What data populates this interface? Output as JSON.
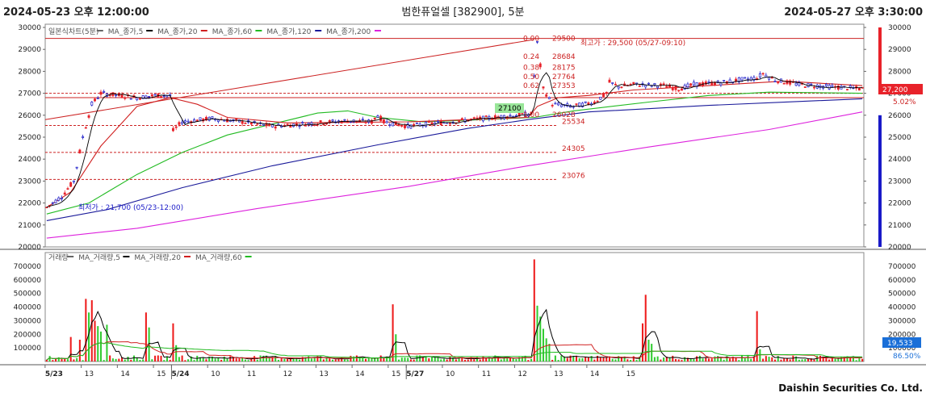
{
  "header": {
    "start": "2024-05-23 오후 12:00:00",
    "title": "범한퓨얼셀 [382900], 5분",
    "end": "2024-05-27 오후 3:30:00"
  },
  "footer": {
    "brand": "Daishin Securities Co. Ltd."
  },
  "colors": {
    "up": "#e8222a",
    "down": "#1a1ac8",
    "ma5": "#000000",
    "ma20": "#d02020",
    "ma60": "#22bb22",
    "ma120": "#1a1a9a",
    "ma200": "#dd22dd",
    "vol_up": "#ee1c1c",
    "vol_down": "#33cc33"
  },
  "price_panel": {
    "legend": [
      {
        "label": "일본식차트(5분)",
        "color": "#666666"
      },
      {
        "label": "MA_종가,5",
        "color": "#000000"
      },
      {
        "label": "MA_종가,20",
        "color": "#d02020"
      },
      {
        "label": "MA_종가,60",
        "color": "#22bb22"
      },
      {
        "label": "MA_종가,120",
        "color": "#1a1a9a"
      },
      {
        "label": "MA_종가,200",
        "color": "#dd22dd"
      }
    ],
    "current_price": "27,200",
    "change_pct": "5.02%",
    "high_label": "최고가 : 29,500 (05/27-09:10)",
    "low_label": "최저가 : 21,700 (05/23-12:00)",
    "box_label": "27100",
    "fib_ratios": [
      "0.00",
      "0.24",
      "0.38",
      "0.50",
      "0.62",
      "1.00"
    ],
    "fib_values": [
      "29500",
      "28684",
      "28175",
      "27764",
      "27353",
      "26028"
    ]
  },
  "volume_panel": {
    "legend": [
      {
        "label": "거래량",
        "color": "#666666"
      },
      {
        "label": "MA_거래량,5",
        "color": "#000000"
      },
      {
        "label": "MA_거래량,20",
        "color": "#d02020"
      },
      {
        "label": "MA_거래량,60",
        "color": "#22bb22"
      }
    ],
    "current_volume": "19,533",
    "volume_pct": "86.50%"
  },
  "chart_data": [
    {
      "type": "candlestick",
      "title": "범한퓨얼셀 [382900], 5분",
      "ylim": [
        20000,
        30000
      ],
      "y_ticks": [
        20000,
        21000,
        22000,
        23000,
        24000,
        25000,
        26000,
        27000,
        28000,
        29000,
        30000
      ],
      "x_ticks": [
        "5/23",
        "13",
        "14",
        "15",
        "5/24",
        "10",
        "11",
        "12",
        "13",
        "14",
        "15",
        "5/27",
        "10",
        "11",
        "12",
        "13",
        "14",
        "15"
      ],
      "bars_per_hour": 12,
      "session_blocks": [
        {
          "day": "5/23",
          "start_hour": 12,
          "bars": 42
        },
        {
          "day": "5/24",
          "start_hour": 9,
          "bars": 78
        },
        {
          "day": "5/27",
          "start_hour": 9,
          "bars": 78
        }
      ],
      "price_path": [
        [
          0,
          21800
        ],
        [
          5,
          22300
        ],
        [
          9,
          23000
        ],
        [
          12,
          25000
        ],
        [
          15,
          26500
        ],
        [
          18,
          27000
        ],
        [
          24,
          26900
        ],
        [
          30,
          26800
        ],
        [
          36,
          26900
        ],
        [
          41,
          26900
        ],
        [
          42,
          25300
        ],
        [
          45,
          25700
        ],
        [
          55,
          25850
        ],
        [
          65,
          25700
        ],
        [
          75,
          25500
        ],
        [
          85,
          25600
        ],
        [
          100,
          25750
        ],
        [
          108,
          25700
        ],
        [
          110,
          26000
        ],
        [
          112,
          25700
        ],
        [
          120,
          25500
        ],
        [
          130,
          25650
        ],
        [
          145,
          25850
        ],
        [
          155,
          26000
        ],
        [
          160,
          26050
        ],
        [
          161,
          26050
        ],
        [
          162,
          27800
        ],
        [
          163,
          29300
        ],
        [
          165,
          27200
        ],
        [
          168,
          26500
        ],
        [
          175,
          26400
        ],
        [
          182,
          26600
        ],
        [
          186,
          27000
        ],
        [
          187,
          27500
        ],
        [
          190,
          27300
        ],
        [
          195,
          27400
        ],
        [
          205,
          27350
        ],
        [
          210,
          27200
        ],
        [
          215,
          27400
        ],
        [
          225,
          27500
        ],
        [
          230,
          27600
        ],
        [
          236,
          27700
        ],
        [
          238,
          27900
        ],
        [
          242,
          27600
        ],
        [
          250,
          27400
        ],
        [
          260,
          27300
        ],
        [
          271,
          27200
        ]
      ],
      "ma": {
        "ma120": [
          [
            0,
            21200
          ],
          [
            20,
            21700
          ],
          [
            45,
            22700
          ],
          [
            75,
            23700
          ],
          [
            110,
            24650
          ],
          [
            140,
            25400
          ],
          [
            160,
            25800
          ],
          [
            180,
            26150
          ],
          [
            220,
            26450
          ],
          [
            271,
            26750
          ]
        ],
        "ma200": [
          [
            0,
            20400
          ],
          [
            30,
            20850
          ],
          [
            70,
            21750
          ],
          [
            120,
            22750
          ],
          [
            160,
            23700
          ],
          [
            200,
            24550
          ],
          [
            240,
            25350
          ],
          [
            271,
            26150
          ]
        ],
        "ma60": [
          [
            0,
            21500
          ],
          [
            14,
            22000
          ],
          [
            30,
            23300
          ],
          [
            45,
            24300
          ],
          [
            60,
            25100
          ],
          [
            75,
            25600
          ],
          [
            90,
            26100
          ],
          [
            100,
            26200
          ],
          [
            110,
            25900
          ],
          [
            125,
            25700
          ],
          [
            145,
            25800
          ],
          [
            162,
            25900
          ],
          [
            175,
            26200
          ],
          [
            200,
            26600
          ],
          [
            220,
            26900
          ],
          [
            240,
            27050
          ],
          [
            271,
            27000
          ]
        ],
        "ma20": [
          [
            0,
            21800
          ],
          [
            8,
            22500
          ],
          [
            18,
            24600
          ],
          [
            30,
            26400
          ],
          [
            41,
            26800
          ],
          [
            50,
            26500
          ],
          [
            60,
            25900
          ],
          [
            80,
            25650
          ],
          [
            120,
            25700
          ],
          [
            160,
            25900
          ],
          [
            163,
            26400
          ],
          [
            170,
            26800
          ],
          [
            180,
            26900
          ],
          [
            195,
            27150
          ],
          [
            220,
            27350
          ],
          [
            245,
            27550
          ],
          [
            271,
            27350
          ]
        ]
      }
    },
    {
      "type": "bar",
      "title": "거래량",
      "ylim": [
        0,
        800000
      ],
      "y_ticks": [
        100000,
        200000,
        300000,
        400000,
        500000,
        600000,
        700000
      ],
      "spikes": [
        {
          "bar": 8,
          "value": 180000,
          "color": "up"
        },
        {
          "bar": 11,
          "value": 160000,
          "color": "up"
        },
        {
          "bar": 13,
          "value": 460000,
          "color": "up"
        },
        {
          "bar": 14,
          "value": 360000,
          "color": "down"
        },
        {
          "bar": 15,
          "value": 450000,
          "color": "up"
        },
        {
          "bar": 16,
          "value": 300000,
          "color": "up"
        },
        {
          "bar": 17,
          "value": 260000,
          "color": "down"
        },
        {
          "bar": 18,
          "value": 220000,
          "color": "down"
        },
        {
          "bar": 20,
          "value": 270000,
          "color": "down"
        },
        {
          "bar": 33,
          "value": 360000,
          "color": "up"
        },
        {
          "bar": 34,
          "value": 250000,
          "color": "down"
        },
        {
          "bar": 42,
          "value": 280000,
          "color": "up"
        },
        {
          "bar": 43,
          "value": 120000,
          "color": "down"
        },
        {
          "bar": 115,
          "value": 420000,
          "color": "up"
        },
        {
          "bar": 116,
          "value": 200000,
          "color": "down"
        },
        {
          "bar": 162,
          "value": 750000,
          "color": "up"
        },
        {
          "bar": 163,
          "value": 410000,
          "color": "down"
        },
        {
          "bar": 164,
          "value": 330000,
          "color": "down"
        },
        {
          "bar": 165,
          "value": 240000,
          "color": "down"
        },
        {
          "bar": 166,
          "value": 170000,
          "color": "down"
        },
        {
          "bar": 167,
          "value": 130000,
          "color": "down"
        },
        {
          "bar": 198,
          "value": 280000,
          "color": "up"
        },
        {
          "bar": 199,
          "value": 490000,
          "color": "up"
        },
        {
          "bar": 200,
          "value": 160000,
          "color": "down"
        },
        {
          "bar": 201,
          "value": 130000,
          "color": "down"
        },
        {
          "bar": 236,
          "value": 370000,
          "color": "up"
        },
        {
          "bar": 237,
          "value": 90000,
          "color": "down"
        }
      ]
    }
  ]
}
